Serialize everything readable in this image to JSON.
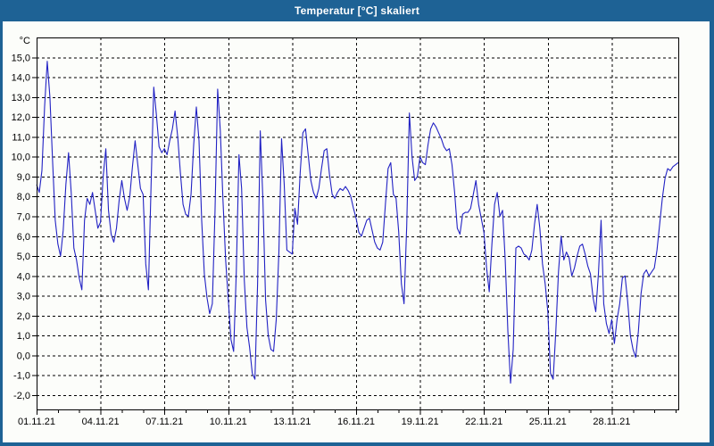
{
  "window": {
    "title": "Temperatur [°C] skaliert"
  },
  "colors": {
    "titlebar": "#1e6295",
    "border": "#1e6295",
    "title_text": "#ffffff",
    "background": "#fcfdfa",
    "frame": "#000000",
    "grid": "#000000",
    "tick": "#000000",
    "label": "#000000",
    "line": "#2222c4"
  },
  "chart_data": {
    "type": "line",
    "title": "Temperatur [°C] skaliert",
    "unit_label": "°C",
    "xlabel": "",
    "ylabel": "°C",
    "ylim": [
      -2.72,
      16.0
    ],
    "grid": "dashed",
    "legend": "none",
    "x_total_days": 30.125,
    "x_minor_tick_step_days": 1,
    "x_ticks": [
      {
        "day": 0,
        "label": "01.11.21"
      },
      {
        "day": 3,
        "label": "04.11.21"
      },
      {
        "day": 6,
        "label": "07.11.21"
      },
      {
        "day": 9,
        "label": "10.11.21"
      },
      {
        "day": 12,
        "label": "13.11.21"
      },
      {
        "day": 15,
        "label": "16.11.21"
      },
      {
        "day": 18,
        "label": "19.11.21"
      },
      {
        "day": 21,
        "label": "22.11.21"
      },
      {
        "day": 24,
        "label": "25.11.21"
      },
      {
        "day": 27,
        "label": "28.11.21"
      }
    ],
    "y_ticks": [
      {
        "v": 15,
        "label": "15,0"
      },
      {
        "v": 14,
        "label": "14,0"
      },
      {
        "v": 13,
        "label": "13,0"
      },
      {
        "v": 12,
        "label": "12,0"
      },
      {
        "v": 11,
        "label": "11,0"
      },
      {
        "v": 10,
        "label": "10,0"
      },
      {
        "v": 9,
        "label": "9,0"
      },
      {
        "v": 8,
        "label": "8,0"
      },
      {
        "v": 7,
        "label": "7,0"
      },
      {
        "v": 6,
        "label": "6,0"
      },
      {
        "v": 5,
        "label": "5,0"
      },
      {
        "v": 4,
        "label": "4,0"
      },
      {
        "v": 3,
        "label": "3,0"
      },
      {
        "v": 2,
        "label": "2,0"
      },
      {
        "v": 1,
        "label": "1,0"
      },
      {
        "v": 0,
        "label": "0,0"
      },
      {
        "v": -1,
        "label": "-1,0"
      },
      {
        "v": -2,
        "label": "-2,0"
      }
    ],
    "series": [
      {
        "name": "Temperatur",
        "start": "01.11.21 00:00",
        "sample_interval_hours": 3,
        "values": [
          8.6,
          8.2,
          9.3,
          12.5,
          14.8,
          13.0,
          9.8,
          6.8,
          5.6,
          5.0,
          6.3,
          8.6,
          10.2,
          8.2,
          5.4,
          4.8,
          3.9,
          3.3,
          6.8,
          7.9,
          7.6,
          8.2,
          7.3,
          6.4,
          6.7,
          9.0,
          10.4,
          7.3,
          6.1,
          5.7,
          6.4,
          7.8,
          8.8,
          7.9,
          7.3,
          8.0,
          9.5,
          10.8,
          9.6,
          8.4,
          8.1,
          4.6,
          3.3,
          8.6,
          13.5,
          12.1,
          10.5,
          10.2,
          10.4,
          10.1,
          10.8,
          11.4,
          12.3,
          11.0,
          9.2,
          7.6,
          7.1,
          7.0,
          8.1,
          10.6,
          12.5,
          10.8,
          6.8,
          4.1,
          2.9,
          2.1,
          2.6,
          7.2,
          13.4,
          11.3,
          7.8,
          4.8,
          2.8,
          0.8,
          0.2,
          4.2,
          10.1,
          8.4,
          3.8,
          1.4,
          0.4,
          -0.9,
          -1.2,
          3.6,
          11.3,
          7.8,
          2.8,
          1.0,
          0.3,
          0.2,
          1.8,
          5.2,
          10.9,
          8.6,
          5.3,
          5.2,
          5.1,
          7.4,
          6.6,
          9.2,
          11.2,
          11.4,
          10.1,
          8.8,
          8.2,
          7.9,
          8.4,
          9.4,
          10.3,
          10.4,
          9.1,
          8.1,
          7.9,
          8.2,
          8.4,
          8.3,
          8.5,
          8.3,
          8.0,
          7.4,
          6.9,
          6.2,
          6.0,
          6.4,
          6.8,
          6.9,
          6.3,
          5.7,
          5.4,
          5.3,
          5.7,
          7.6,
          9.4,
          9.7,
          8.1,
          7.9,
          6.2,
          3.6,
          2.6,
          6.5,
          12.2,
          10.0,
          8.8,
          9.0,
          10.0,
          9.7,
          9.6,
          10.6,
          11.4,
          11.7,
          11.5,
          11.2,
          10.9,
          10.5,
          10.3,
          10.4,
          9.6,
          8.2,
          6.4,
          6.1,
          7.1,
          7.2,
          7.2,
          7.4,
          8.1,
          8.8,
          7.6,
          6.9,
          6.2,
          4.4,
          3.2,
          5.6,
          7.6,
          8.2,
          7.0,
          7.3,
          4.8,
          1.2,
          -1.4,
          0.3,
          5.4,
          5.5,
          5.4,
          5.1,
          5.0,
          4.8,
          5.3,
          6.6,
          7.6,
          6.4,
          4.6,
          3.6,
          2.2,
          -0.9,
          -1.2,
          1.2,
          4.2,
          6.0,
          4.8,
          5.2,
          4.9,
          4.0,
          4.4,
          5.0,
          5.5,
          5.6,
          5.1,
          4.5,
          4.1,
          2.9,
          2.2,
          4.1,
          6.8,
          2.6,
          1.6,
          1.1,
          1.8,
          0.6,
          1.8,
          2.6,
          3.9,
          4.0,
          2.7,
          1.0,
          0.3,
          -0.1,
          1.2,
          3.1,
          4.1,
          4.3,
          4.0,
          4.2,
          4.4,
          5.3,
          6.6,
          7.9,
          8.9,
          9.4,
          9.3,
          9.5,
          9.6,
          9.7
        ]
      }
    ]
  }
}
